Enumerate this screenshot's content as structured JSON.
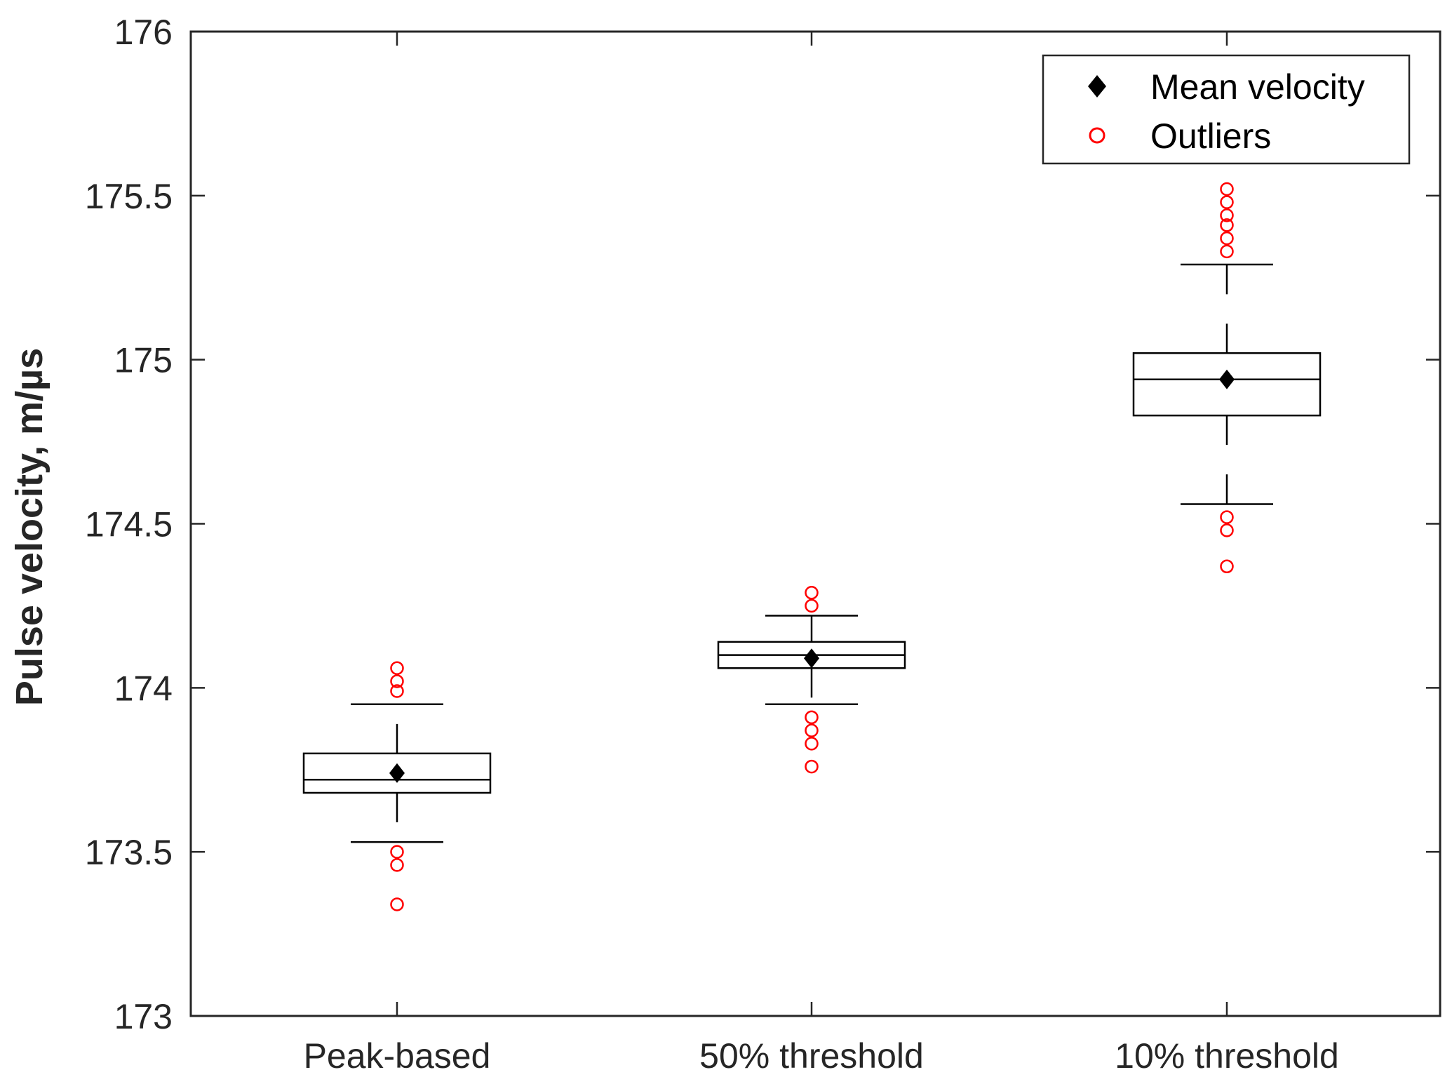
{
  "chart_data": {
    "type": "boxplot",
    "title": "",
    "xlabel": "",
    "ylabel": "Pulse velocity, m/µs",
    "ylim": [
      173,
      176
    ],
    "yticks": [
      173,
      173.5,
      174,
      174.5,
      175,
      175.5,
      176
    ],
    "ytick_labels": [
      "173",
      "173.5",
      "174",
      "174.5",
      "175",
      "175.5",
      "176"
    ],
    "grid": false,
    "legend": {
      "location": "top-right",
      "entries": [
        {
          "label": "Mean velocity",
          "marker": "filled-diamond",
          "color": "#000000"
        },
        {
          "label": "Outliers",
          "marker": "open-circle",
          "color": "#ff0000"
        }
      ]
    },
    "categories": [
      "Peak-based",
      "50% threshold",
      "10% threshold"
    ],
    "boxes": [
      {
        "category": "Peak-based",
        "whisker_low": 173.53,
        "q1": 173.68,
        "median": 173.72,
        "q3": 173.8,
        "whisker_high": 173.95,
        "mean": 173.74,
        "outliers": [
          173.34,
          173.46,
          173.5,
          173.99,
          174.02,
          174.06
        ]
      },
      {
        "category": "50% threshold",
        "whisker_low": 173.95,
        "q1": 174.06,
        "median": 174.1,
        "q3": 174.14,
        "whisker_high": 174.22,
        "mean": 174.09,
        "outliers": [
          173.76,
          173.83,
          173.87,
          173.91,
          174.25,
          174.29
        ]
      },
      {
        "category": "10% threshold",
        "whisker_low": 174.56,
        "q1": 174.83,
        "median": 174.94,
        "q3": 175.02,
        "whisker_high": 175.29,
        "mean": 174.94,
        "outliers": [
          174.37,
          174.48,
          174.52,
          175.33,
          175.37,
          175.41,
          175.44,
          175.48,
          175.52
        ]
      }
    ],
    "colors": {
      "box": "#000000",
      "mean": "#000000",
      "outlier": "#ff0000",
      "axis": "#262626"
    }
  }
}
